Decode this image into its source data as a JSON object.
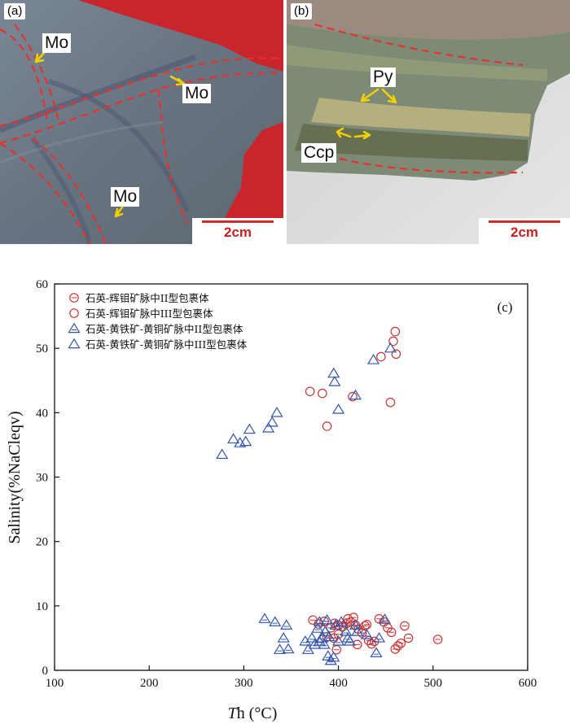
{
  "panels": {
    "a": {
      "tag": "(a)",
      "labels": [
        "Mo",
        "Mo",
        "Mo"
      ],
      "scale": "2cm"
    },
    "b": {
      "tag": "(b)",
      "labels": [
        "Py",
        "Ccp"
      ],
      "scale": "2cm"
    }
  },
  "colors": {
    "red_series": "#cc3333",
    "blue_series": "#3355aa",
    "boundary": "#e8302c",
    "arrow": "#f5d000",
    "scale_bar": "#d42a2a"
  },
  "chart_data": {
    "type": "scatter",
    "panel_label": "(c)",
    "xlabel_italic": "T",
    "xlabel_rest": "h (°C)",
    "ylabel": "Salinity(%NaCleqv)",
    "xlim": [
      100,
      600
    ],
    "ylim": [
      0,
      60
    ],
    "xticks": [
      100,
      200,
      300,
      400,
      500,
      600
    ],
    "yticks": [
      0,
      10,
      20,
      30,
      40,
      50,
      60
    ],
    "grid": false,
    "legend_position": "top-left",
    "series": [
      {
        "name": "石英-辉钼矿脉中II型包裹体",
        "marker": "circle-dot",
        "color": "#cc3333",
        "points": [
          [
            373,
            7.8
          ],
          [
            379,
            7.2
          ],
          [
            385,
            7.6
          ],
          [
            388,
            5.2
          ],
          [
            392,
            6.6
          ],
          [
            396,
            7.3
          ],
          [
            400,
            7.0
          ],
          [
            405,
            6.8
          ],
          [
            408,
            7.2
          ],
          [
            410,
            8.0
          ],
          [
            413,
            7.5
          ],
          [
            416,
            8.2
          ],
          [
            418,
            7.0
          ],
          [
            421,
            6.4
          ],
          [
            425,
            5.8
          ],
          [
            428,
            6.9
          ],
          [
            430,
            7.1
          ],
          [
            432,
            4.6
          ],
          [
            435,
            4.1
          ],
          [
            438,
            4.5
          ],
          [
            443,
            8.0
          ],
          [
            448,
            7.5
          ],
          [
            452,
            6.6
          ],
          [
            456,
            5.9
          ],
          [
            460,
            3.3
          ],
          [
            463,
            3.8
          ],
          [
            466,
            4.2
          ],
          [
            470,
            6.9
          ],
          [
            474,
            5.0
          ],
          [
            505,
            4.8
          ],
          [
            400,
            5.6
          ],
          [
            395,
            5.0
          ],
          [
            420,
            4.0
          ],
          [
            398,
            3.2
          ]
        ]
      },
      {
        "name": "石英-辉钼矿脉中III型包裹体",
        "marker": "circle",
        "color": "#cc3333",
        "points": [
          [
            370,
            43.3
          ],
          [
            383,
            43.0
          ],
          [
            388,
            37.9
          ],
          [
            415,
            42.5
          ],
          [
            445,
            48.7
          ],
          [
            455,
            41.6
          ],
          [
            458,
            51.1
          ],
          [
            460,
            52.6
          ],
          [
            461,
            49.1
          ]
        ]
      },
      {
        "name": "石英-黄铁矿-黄铜矿脉中II型包裹体",
        "marker": "triangle-dot",
        "color": "#3355aa",
        "points": [
          [
            322,
            8.0
          ],
          [
            333,
            7.5
          ],
          [
            338,
            3.2
          ],
          [
            342,
            5.0
          ],
          [
            345,
            7.0
          ],
          [
            347,
            3.3
          ],
          [
            365,
            4.5
          ],
          [
            368,
            3.2
          ],
          [
            372,
            5.0
          ],
          [
            375,
            4.0
          ],
          [
            378,
            6.5
          ],
          [
            380,
            7.5
          ],
          [
            383,
            5.0
          ],
          [
            385,
            4.0
          ],
          [
            386,
            6.0
          ],
          [
            388,
            7.8
          ],
          [
            390,
            5.2
          ],
          [
            392,
            1.5
          ],
          [
            395,
            2.0
          ],
          [
            397,
            7.0
          ],
          [
            400,
            4.5
          ],
          [
            403,
            7.5
          ],
          [
            408,
            6.0
          ],
          [
            410,
            5.0
          ],
          [
            412,
            4.5
          ],
          [
            418,
            7.0
          ],
          [
            420,
            6.0
          ],
          [
            430,
            5.5
          ],
          [
            440,
            2.7
          ],
          [
            443,
            5.0
          ],
          [
            449,
            7.9
          ],
          [
            389,
            2.2
          ],
          [
            380,
            4.5
          ]
        ]
      },
      {
        "name": "石英-黄铁矿-黄铜矿脉中III型包裹体",
        "marker": "triangle",
        "color": "#3355aa",
        "points": [
          [
            277,
            33.5
          ],
          [
            289,
            35.9
          ],
          [
            296,
            35.3
          ],
          [
            302,
            35.5
          ],
          [
            306,
            37.4
          ],
          [
            326,
            37.6
          ],
          [
            330,
            38.5
          ],
          [
            335,
            40.0
          ],
          [
            395,
            46.1
          ],
          [
            396,
            44.8
          ],
          [
            400,
            40.5
          ],
          [
            418,
            42.7
          ],
          [
            437,
            48.2
          ],
          [
            455,
            50.0
          ]
        ]
      }
    ]
  }
}
